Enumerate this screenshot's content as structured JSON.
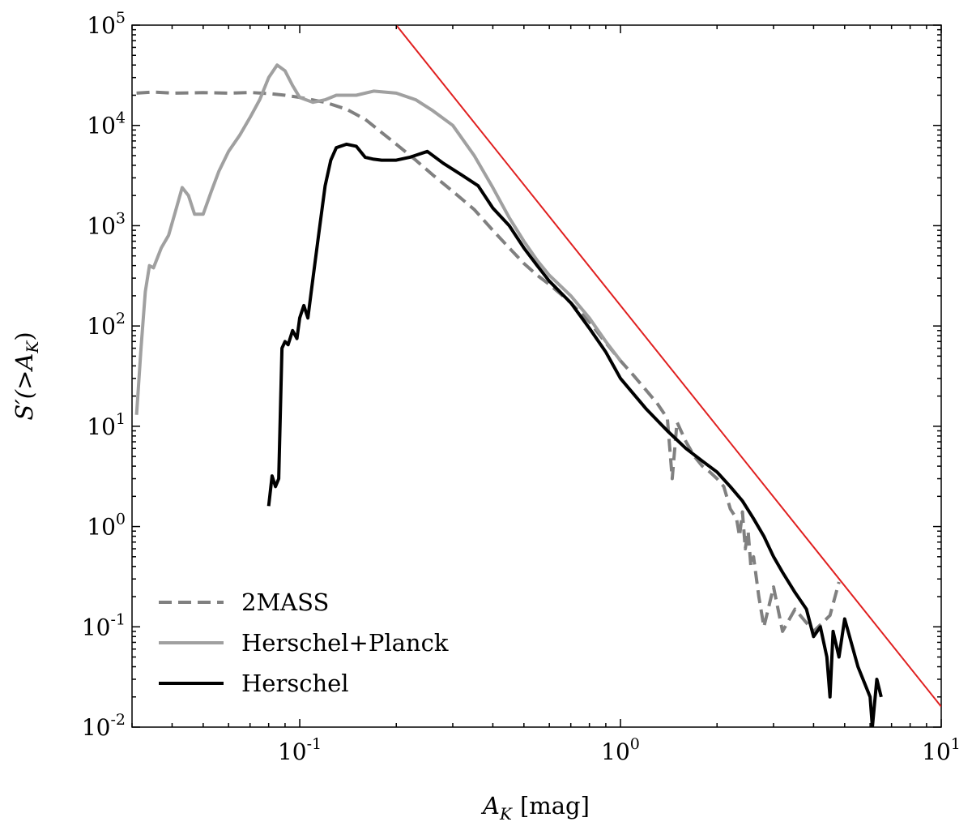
{
  "chart_data": {
    "type": "line",
    "title": "",
    "xlabel": {
      "symbol": "A",
      "subscript": "K",
      "unit": "[mag]"
    },
    "ylabel": {
      "prefix": "S′(>",
      "symbol": "A",
      "subscript": "K",
      "suffix": ")"
    },
    "xscale": "log",
    "yscale": "log",
    "xlim": [
      0.03,
      10
    ],
    "ylim": [
      0.01,
      100000
    ],
    "grid": false,
    "legend_position": "lower-left",
    "x_ticks": [
      {
        "value": 0.1,
        "base": "10",
        "exp": "-1"
      },
      {
        "value": 1,
        "base": "10",
        "exp": "0"
      },
      {
        "value": 10,
        "base": "10",
        "exp": "1"
      }
    ],
    "y_ticks": [
      {
        "value": 100000,
        "base": "10",
        "exp": "5"
      },
      {
        "value": 10000,
        "base": "10",
        "exp": "4"
      },
      {
        "value": 1000,
        "base": "10",
        "exp": "3"
      },
      {
        "value": 100,
        "base": "10",
        "exp": "2"
      },
      {
        "value": 10,
        "base": "10",
        "exp": "1"
      },
      {
        "value": 1,
        "base": "10",
        "exp": "0"
      },
      {
        "value": 0.1,
        "base": "10",
        "exp": "-1"
      },
      {
        "value": 0.01,
        "base": "10",
        "exp": "-2"
      }
    ],
    "series": [
      {
        "name": "2MASS",
        "color": "#808080",
        "dash": "dashed",
        "x": [
          0.031,
          0.035,
          0.04,
          0.05,
          0.06,
          0.07,
          0.08,
          0.09,
          0.1,
          0.12,
          0.14,
          0.16,
          0.18,
          0.2,
          0.23,
          0.26,
          0.3,
          0.35,
          0.4,
          0.45,
          0.5,
          0.55,
          0.6,
          0.7,
          0.8,
          0.9,
          1.0,
          1.1,
          1.2,
          1.3,
          1.4,
          1.45,
          1.5,
          1.6,
          1.7,
          1.8,
          1.9,
          2.0,
          2.1,
          2.2,
          2.3,
          2.35,
          2.4,
          2.45,
          2.5,
          2.55,
          2.6,
          2.7,
          2.8,
          3.0,
          3.2,
          3.5,
          4.0,
          4.5,
          4.8
        ],
        "y": [
          21000,
          21500,
          21000,
          21200,
          21000,
          21300,
          20800,
          20000,
          19000,
          17000,
          14500,
          11500,
          8500,
          6500,
          4500,
          3200,
          2200,
          1450,
          900,
          600,
          420,
          320,
          260,
          170,
          110,
          68,
          45,
          32,
          23,
          17,
          12,
          3,
          11,
          7,
          5,
          4,
          3.5,
          3,
          2.5,
          1.5,
          1.2,
          0.8,
          1.4,
          0.6,
          0.9,
          0.4,
          0.5,
          0.2,
          0.1,
          0.25,
          0.09,
          0.15,
          0.09,
          0.13,
          0.28
        ]
      },
      {
        "name": "Herschel+Planck",
        "color": "#a0a0a0",
        "dash": "solid",
        "x": [
          0.031,
          0.032,
          0.033,
          0.034,
          0.035,
          0.037,
          0.039,
          0.041,
          0.043,
          0.045,
          0.047,
          0.05,
          0.053,
          0.056,
          0.06,
          0.065,
          0.07,
          0.075,
          0.08,
          0.085,
          0.09,
          0.095,
          0.1,
          0.11,
          0.12,
          0.13,
          0.15,
          0.17,
          0.2,
          0.23,
          0.26,
          0.3,
          0.35,
          0.4,
          0.45,
          0.5,
          0.55,
          0.6,
          0.7,
          0.8,
          0.9,
          1.0
        ],
        "y": [
          13,
          60,
          220,
          400,
          380,
          600,
          800,
          1400,
          2400,
          2000,
          1300,
          1300,
          2200,
          3500,
          5500,
          8000,
          12000,
          18000,
          30000,
          40000,
          35000,
          25000,
          19000,
          17000,
          18000,
          20000,
          20000,
          22000,
          21000,
          18000,
          14000,
          10000,
          5000,
          2400,
          1200,
          700,
          450,
          320,
          200,
          120,
          70,
          45
        ]
      },
      {
        "name": "Herschel",
        "color": "#000000",
        "dash": "solid",
        "x": [
          0.08,
          0.082,
          0.084,
          0.086,
          0.088,
          0.09,
          0.092,
          0.095,
          0.098,
          0.1,
          0.103,
          0.106,
          0.11,
          0.115,
          0.12,
          0.125,
          0.13,
          0.14,
          0.15,
          0.16,
          0.17,
          0.18,
          0.2,
          0.22,
          0.25,
          0.28,
          0.32,
          0.36,
          0.4,
          0.45,
          0.5,
          0.55,
          0.6,
          0.7,
          0.8,
          0.9,
          1.0,
          1.2,
          1.4,
          1.6,
          1.8,
          2.0,
          2.2,
          2.4,
          2.6,
          2.8,
          3.0,
          3.2,
          3.5,
          3.8,
          4.0,
          4.2,
          4.4,
          4.5,
          4.6,
          4.8,
          5.0,
          5.5,
          6.0,
          6.1,
          6.3,
          6.5
        ],
        "y": [
          1.6,
          3.2,
          2.5,
          3.0,
          60,
          70,
          65,
          90,
          75,
          120,
          160,
          120,
          300,
          900,
          2500,
          4500,
          6000,
          6500,
          6200,
          4800,
          4600,
          4500,
          4500,
          4800,
          5500,
          4200,
          3200,
          2500,
          1500,
          1000,
          600,
          400,
          280,
          170,
          95,
          55,
          30,
          15,
          9,
          6,
          4.5,
          3.5,
          2.5,
          1.8,
          1.2,
          0.8,
          0.5,
          0.35,
          0.22,
          0.15,
          0.08,
          0.1,
          0.05,
          0.02,
          0.09,
          0.05,
          0.12,
          0.04,
          0.02,
          0.01,
          0.03,
          0.02
        ]
      },
      {
        "name": "",
        "color": "#e02020",
        "dash": "solid",
        "x": [
          0.2,
          10
        ],
        "y": [
          100000,
          0.016
        ]
      }
    ]
  }
}
